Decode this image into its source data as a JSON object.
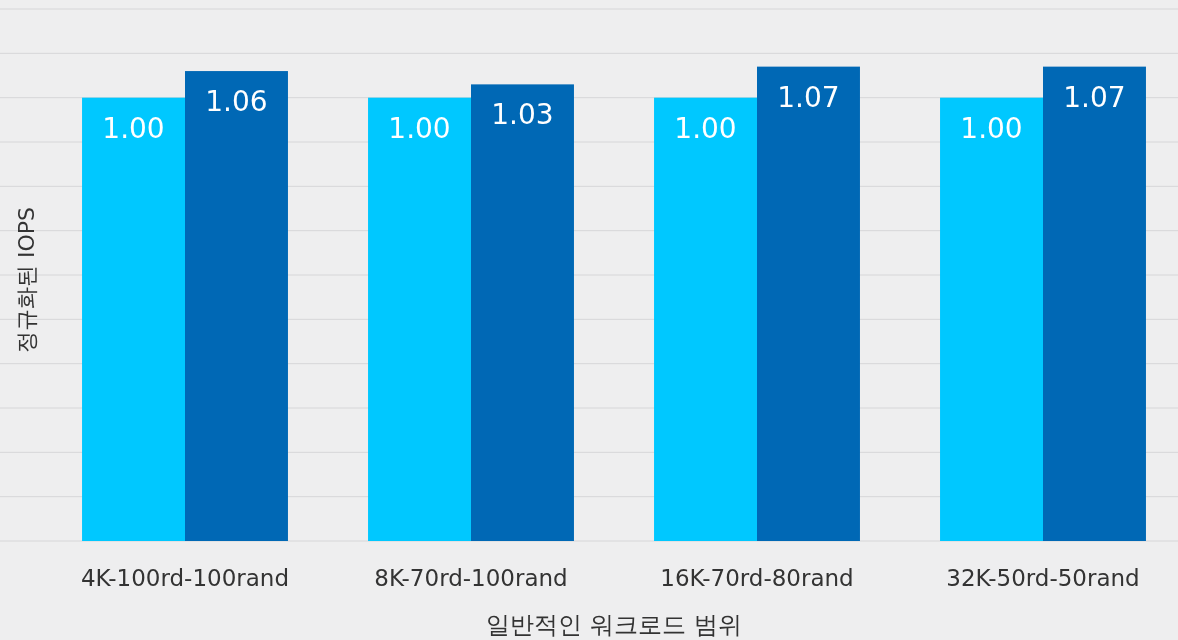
{
  "chart_data": {
    "type": "bar",
    "xlabel": "일반적인 워크로드 범위",
    "ylabel": "정규화된 IOPS",
    "categories": [
      "4K-100rd-100rand",
      "8K-70rd-100rand",
      "16K-70rd-80rand",
      "32K-50rd-50rand"
    ],
    "series": [
      {
        "color": "#00c8ff",
        "values": [
          1.0,
          1.0,
          1.0,
          1.0
        ],
        "value_labels": [
          "1.00",
          "1.00",
          "1.00",
          "1.00"
        ]
      },
      {
        "color": "#0068b5",
        "values": [
          1.06,
          1.03,
          1.07,
          1.07
        ],
        "value_labels": [
          "1.06",
          "1.03",
          "1.07",
          "1.07"
        ]
      }
    ],
    "ylim": [
      0,
      1.2
    ],
    "yticks": [
      {
        "value": 0,
        "label": null
      },
      {
        "value": 0.1,
        "label": null
      },
      {
        "value": 0.2,
        "label": null
      },
      {
        "value": 0.3,
        "label": null
      },
      {
        "value": 0.4,
        "label": null
      },
      {
        "value": 0.5,
        "label": null
      },
      {
        "value": 0.6,
        "label": null
      },
      {
        "value": 0.7,
        "label": null
      },
      {
        "value": 0.8,
        "label": null
      },
      {
        "value": 0.9,
        "label": null
      },
      {
        "value": 1.0,
        "label": null
      },
      {
        "value": 1.1,
        "label": null
      },
      {
        "value": 1.2,
        "label": null
      }
    ],
    "grid": "y",
    "tick_labels": "x"
  }
}
